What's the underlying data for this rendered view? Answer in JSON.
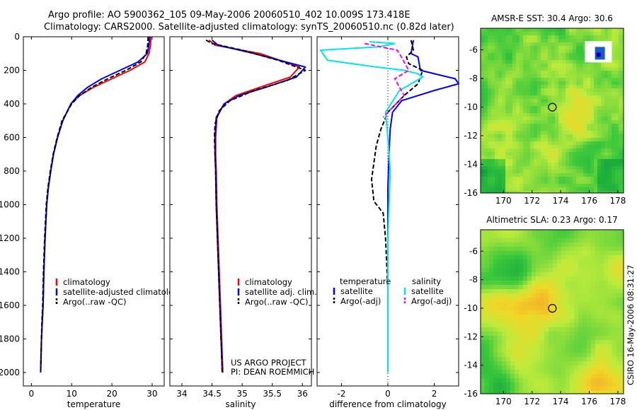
{
  "header": {
    "line1": "Argo profile: AO 5900362_105 09-May-2006 20060510_402 10.009S 173.418E",
    "line2": "Climatology: CARS2000. Satellite-adjusted climatology: synTS_20060510.nc (0.82d later)"
  },
  "side_label": "CSIRO 16-May-2006 08:31:27",
  "project": {
    "line1": "US ARGO PROJECT",
    "line2": "PI: DEAN ROEMMICH"
  },
  "colors": {
    "climatology": "#ff0000",
    "satellite": "#0000ff",
    "argo": "#000000",
    "salinity_satellite": "#00e5e5",
    "salinity_argo": "#ff00ff"
  },
  "chart_data": [
    {
      "id": "temperature",
      "type": "line",
      "xlabel": "temperature",
      "ylabel": "",
      "xlim": [
        -2,
        33
      ],
      "ylim": [
        0,
        2080
      ],
      "y_inverted": true,
      "xticks": [
        0,
        10,
        20,
        30
      ],
      "yticks": [
        0,
        200,
        400,
        600,
        800,
        1000,
        1200,
        1400,
        1600,
        1800,
        2000
      ],
      "legend": {
        "position": "bottom-right",
        "labels": [
          "climatology",
          "satellite-adjusted climatology",
          "Argo(..raw -QC)"
        ]
      },
      "series": [
        {
          "name": "climatology",
          "color": "#ff0000",
          "dash": "",
          "x": [
            29.7,
            29.6,
            29.2,
            28.2,
            24.5,
            20.0,
            15.5,
            12.0,
            9.8,
            7.8,
            6.5,
            5.5,
            4.8,
            4.2,
            3.8,
            3.4,
            3.1,
            2.9,
            2.7,
            2.5,
            2.4,
            2.3
          ],
          "y": [
            0,
            50,
            100,
            150,
            200,
            250,
            300,
            350,
            400,
            500,
            600,
            700,
            800,
            900,
            1000,
            1200,
            1400,
            1600,
            1700,
            1800,
            1900,
            2000
          ]
        },
        {
          "name": "satellite-adjusted climatology",
          "color": "#0000ff",
          "dash": "",
          "x": [
            29.4,
            29.2,
            28.8,
            26.5,
            22.0,
            17.5,
            14.0,
            11.5,
            9.8,
            7.8,
            6.5,
            5.5,
            4.8,
            4.2,
            3.8,
            3.4,
            3.1,
            2.9,
            2.7,
            2.5,
            2.4,
            2.3
          ],
          "y": [
            0,
            50,
            100,
            150,
            200,
            250,
            300,
            350,
            400,
            500,
            600,
            700,
            800,
            900,
            1000,
            1200,
            1400,
            1600,
            1700,
            1800,
            1900,
            2000
          ]
        },
        {
          "name": "Argo(..raw -QC)",
          "color": "#000000",
          "dash": "6,3",
          "x": [
            29.0,
            28.9,
            28.5,
            27.2,
            23.5,
            19.0,
            15.0,
            12.0,
            10.0,
            7.6,
            6.4,
            5.4,
            4.7,
            4.1,
            3.7,
            3.3,
            3.0,
            2.8,
            2.6,
            2.5,
            2.4,
            2.3
          ],
          "y": [
            0,
            50,
            100,
            150,
            200,
            250,
            300,
            350,
            400,
            500,
            600,
            700,
            800,
            900,
            1000,
            1200,
            1400,
            1600,
            1700,
            1800,
            1900,
            2000
          ]
        }
      ]
    },
    {
      "id": "salinity",
      "type": "line",
      "xlabel": "salinity",
      "ylabel": "",
      "xlim": [
        33.8,
        36.15
      ],
      "ylim": [
        0,
        2080
      ],
      "y_inverted": true,
      "xticks": [
        34,
        34.5,
        35,
        35.5,
        36
      ],
      "yticks": [
        0,
        200,
        400,
        600,
        800,
        1000,
        1200,
        1400,
        1600,
        1800,
        2000
      ],
      "legend": {
        "position": "bottom-right",
        "labels": [
          "climatology",
          "satellite adj. clim.",
          "Argo(..raw -QC)"
        ]
      },
      "series": [
        {
          "name": "climatology",
          "color": "#ff0000",
          "dash": "",
          "x": [
            34.45,
            34.55,
            35.3,
            35.95,
            35.8,
            35.3,
            34.9,
            34.7,
            34.58,
            34.56,
            34.56,
            34.57,
            34.58,
            34.6,
            34.62,
            34.64,
            34.66,
            34.67,
            34.68
          ],
          "y": [
            20,
            50,
            100,
            180,
            240,
            300,
            350,
            400,
            480,
            600,
            700,
            800,
            1000,
            1200,
            1400,
            1600,
            1800,
            1900,
            2000
          ]
        },
        {
          "name": "satellite adj. clim.",
          "color": "#0000ff",
          "dash": "",
          "x": [
            34.5,
            34.6,
            35.2,
            36.05,
            35.9,
            35.4,
            34.95,
            34.7,
            34.57,
            34.55,
            34.55,
            34.56,
            34.57,
            34.59,
            34.61,
            34.63,
            34.65,
            34.66,
            34.67
          ],
          "y": [
            20,
            50,
            100,
            180,
            240,
            300,
            350,
            400,
            480,
            600,
            700,
            800,
            1000,
            1200,
            1400,
            1600,
            1800,
            1900,
            2000
          ]
        },
        {
          "name": "Argo(..raw -QC)",
          "color": "#000000",
          "dash": "6,3",
          "x": [
            34.4,
            34.5,
            35.0,
            35.6,
            36.05,
            35.75,
            35.2,
            34.8,
            34.62,
            34.55,
            34.54,
            34.55,
            34.56,
            34.57,
            34.59,
            34.61,
            34.63,
            34.65,
            34.66,
            34.67
          ],
          "y": [
            20,
            40,
            80,
            140,
            200,
            260,
            320,
            380,
            440,
            520,
            600,
            700,
            800,
            1000,
            1200,
            1400,
            1600,
            1800,
            1900,
            2000
          ]
        }
      ]
    },
    {
      "id": "difference",
      "type": "line",
      "xlabel": "difference from climatology",
      "ylabel": "",
      "xlim": [
        -3.05,
        3.05
      ],
      "ylim": [
        0,
        2080
      ],
      "y_inverted": true,
      "xticks": [
        -2,
        0,
        2
      ],
      "yticks": [
        0,
        200,
        400,
        600,
        800,
        1000,
        1200,
        1400,
        1600,
        1800,
        2000
      ],
      "zero_line": true,
      "legend": {
        "position": "bottom",
        "columns": [
          {
            "header": "temperature",
            "labels": [
              "satellite",
              "Argo(-adj)"
            ]
          },
          {
            "header": "salinity",
            "labels": [
              "satellite",
              "Argo(-adj)"
            ]
          }
        ]
      },
      "series": [
        {
          "name": "temperature satellite",
          "color": "#0000ff",
          "dash": "",
          "x": [
            1.1,
            1.0,
            1.3,
            1.4,
            2.9,
            3.05,
            2.0,
            0.6,
            0.2,
            0.1,
            0.05,
            0.0,
            0.0,
            0.0,
            0.0,
            0.0,
            0.0,
            0.0
          ],
          "y": [
            20,
            100,
            120,
            200,
            250,
            280,
            320,
            380,
            450,
            550,
            700,
            900,
            1100,
            1300,
            1500,
            1700,
            1900,
            2000
          ]
        },
        {
          "name": "temperature Argo(-adj)",
          "color": "#000000",
          "dash": "6,3",
          "x": [
            1.0,
            1.1,
            0.8,
            0.9,
            1.5,
            1.3,
            0.7,
            0.0,
            -0.3,
            -0.5,
            -0.6,
            -0.7,
            -0.6,
            -0.2,
            -0.1,
            0.0,
            0.0,
            0.0
          ],
          "y": [
            20,
            80,
            120,
            160,
            200,
            280,
            350,
            450,
            550,
            650,
            750,
            850,
            980,
            1050,
            1200,
            1500,
            1800,
            2000
          ]
        },
        {
          "name": "salinity satellite",
          "color": "#00e5e5",
          "dash": "",
          "x": [
            -0.8,
            0.3,
            -0.4,
            -2.9,
            -2.6,
            -0.5,
            0.7,
            1.3,
            1.5,
            0.5,
            -0.1,
            0.0,
            0.1,
            0.0,
            0.0,
            0.0,
            0.0
          ],
          "y": [
            30,
            40,
            60,
            80,
            140,
            180,
            200,
            220,
            240,
            320,
            450,
            600,
            800,
            1200,
            1600,
            1800,
            2000
          ]
        },
        {
          "name": "salinity Argo(-adj)",
          "color": "#ff00ff",
          "dash": "6,3",
          "x": [
            -1.0,
            -0.3,
            0.4,
            0.5,
            0.7,
            0.9,
            0.3,
            0.5,
            0.7,
            0.2,
            -0.2
          ],
          "y": [
            40,
            60,
            80,
            100,
            150,
            200,
            250,
            300,
            350,
            420,
            480
          ]
        }
      ]
    },
    {
      "id": "sst_map",
      "type": "heatmap",
      "title": "AMSR-E SST: 30.4 Argo: 30.6",
      "xlim": [
        168.4,
        178.4
      ],
      "ylim": [
        -16,
        -4.5
      ],
      "xticks": [
        170,
        172,
        174,
        176,
        178
      ],
      "yticks": [
        -6,
        -8,
        -10,
        -12,
        -14,
        -16
      ],
      "marker": {
        "lon": 173.418,
        "lat": -10.009
      }
    },
    {
      "id": "sla_map",
      "type": "heatmap",
      "title": "Altimetric SLA: 0.23 Argo: 0.17",
      "xlim": [
        168.4,
        178.4
      ],
      "ylim": [
        -16,
        -4.5
      ],
      "xticks": [
        170,
        172,
        174,
        176,
        178
      ],
      "yticks": [
        -6,
        -8,
        -10,
        -12,
        -14,
        -16
      ],
      "marker": {
        "lon": 173.418,
        "lat": -10.009
      }
    }
  ]
}
